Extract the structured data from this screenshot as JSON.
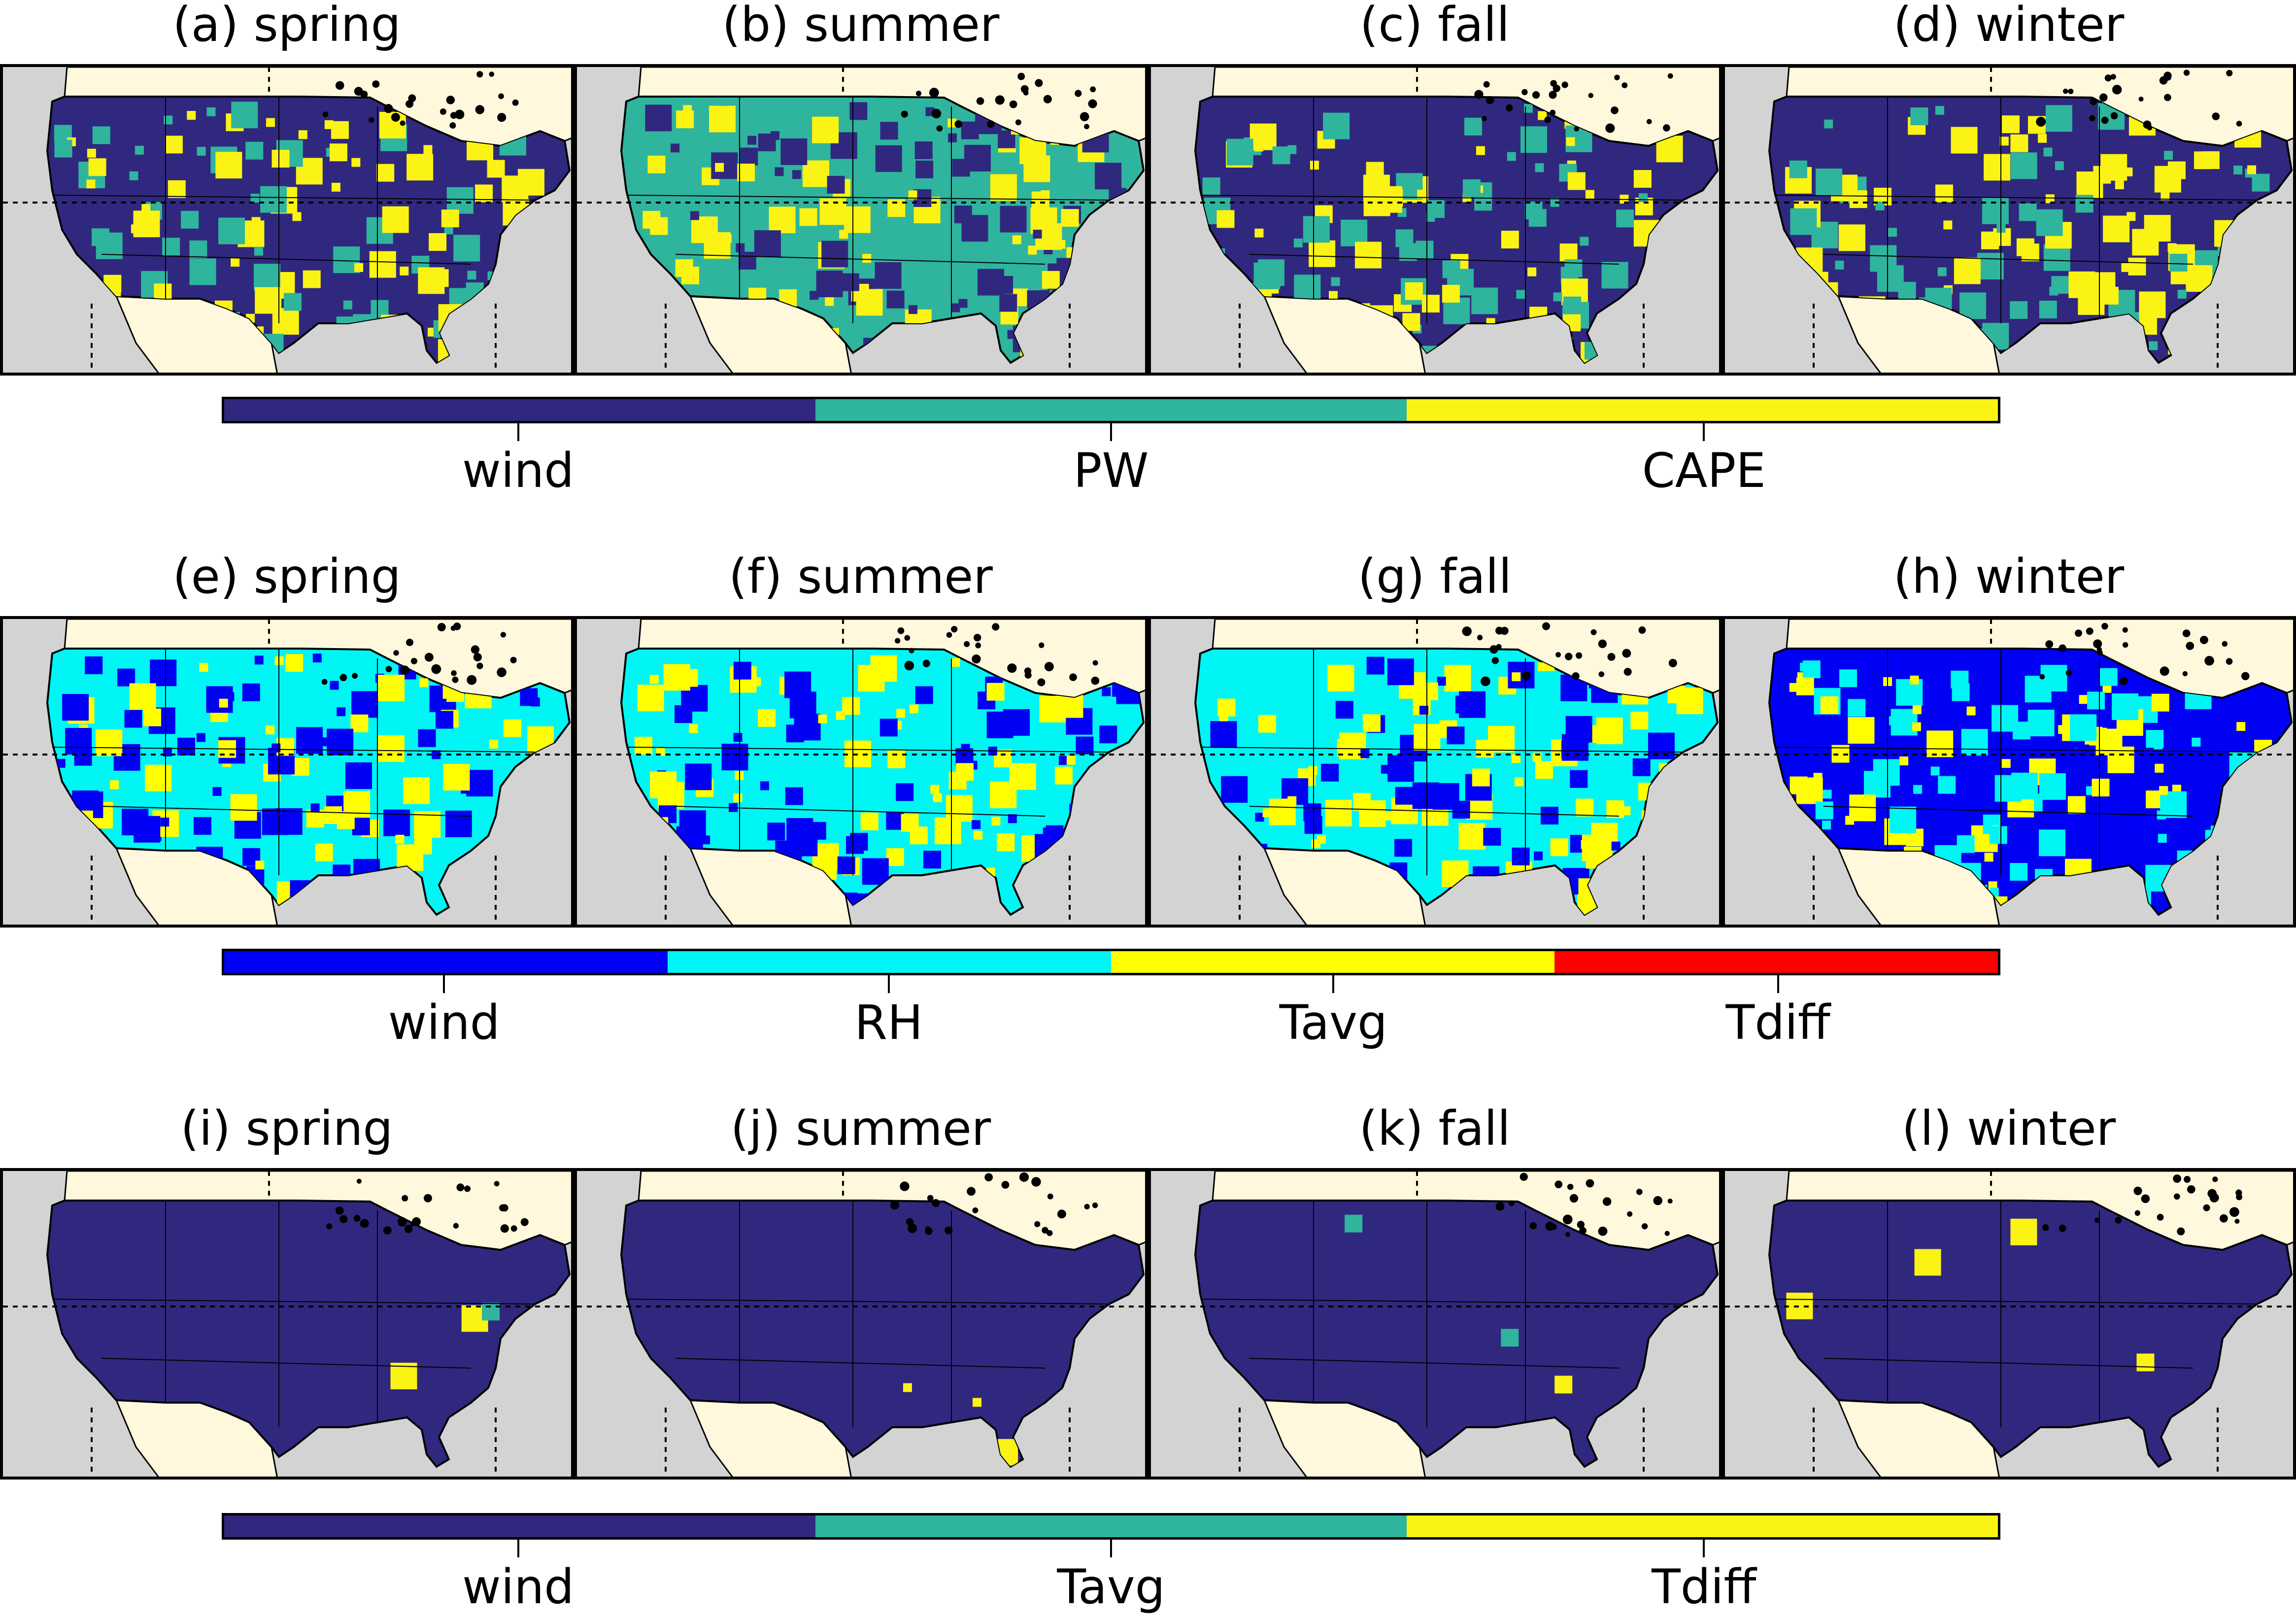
{
  "rows": [
    {
      "panels": [
        {
          "title": "(a) spring"
        },
        {
          "title": "(b) summer"
        },
        {
          "title": "(c) fall"
        },
        {
          "title": "(d) winter"
        }
      ],
      "colorbar": {
        "categories": [
          "wind",
          "PW",
          "CAPE"
        ],
        "colors": [
          "#30287e",
          "#2fb49e",
          "#fbf313"
        ]
      },
      "dominant": [
        "wind",
        "PW",
        "wind",
        "wind"
      ]
    },
    {
      "panels": [
        {
          "title": "(e) spring"
        },
        {
          "title": "(f) summer"
        },
        {
          "title": "(g) fall"
        },
        {
          "title": "(h) winter"
        }
      ],
      "colorbar": {
        "categories": [
          "wind",
          "RH",
          "Tavg",
          "Tdiff"
        ],
        "colors": [
          "#0000f5",
          "#00f5f5",
          "#ffff00",
          "#ff0000"
        ]
      },
      "dominant": [
        "RH",
        "RH",
        "RH",
        "wind"
      ]
    },
    {
      "panels": [
        {
          "title": "(i) spring"
        },
        {
          "title": "(j) summer"
        },
        {
          "title": "(k) fall"
        },
        {
          "title": "(l) winter"
        }
      ],
      "colorbar": {
        "categories": [
          "wind",
          "Tavg",
          "Tdiff"
        ],
        "colors": [
          "#30287e",
          "#2fb49e",
          "#fbf313"
        ]
      },
      "dominant": [
        "wind",
        "wind",
        "wind",
        "wind"
      ]
    }
  ],
  "map_colors": {
    "ocean": "#d3d3d3",
    "land": "#fff8dc",
    "border": "#000000"
  }
}
